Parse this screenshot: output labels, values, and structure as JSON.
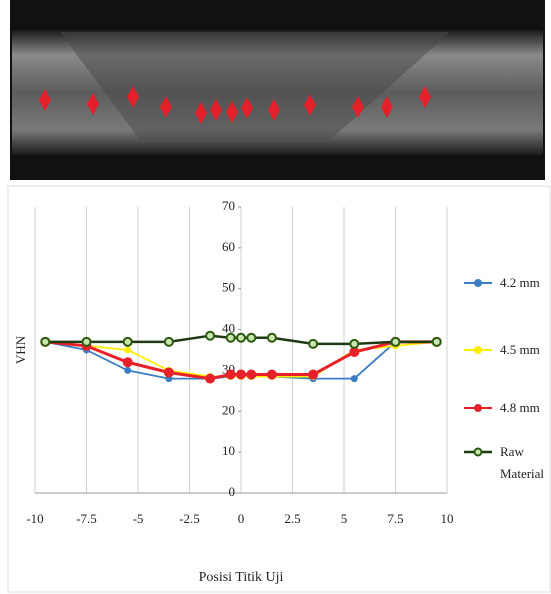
{
  "chart_data": {
    "type": "line",
    "xlabel": "Posisi Titik Uji",
    "ylabel": "VHN",
    "x": [
      -9.5,
      -7.5,
      -5.5,
      -3.5,
      -1.5,
      -0.5,
      0,
      0.5,
      1.5,
      3.5,
      5.5,
      7.5,
      9.5
    ],
    "series": [
      {
        "name": "4.2 mm",
        "color": "#3b7dc4",
        "values": [
          37,
          35,
          30,
          28,
          28,
          28.5,
          28.5,
          28.5,
          28.5,
          28,
          28,
          37,
          37
        ]
      },
      {
        "name": "4.5 mm",
        "color": "#ffee00",
        "values": [
          37,
          36,
          35,
          30,
          28.5,
          28.5,
          28.5,
          28.5,
          28.5,
          28.5,
          35,
          36,
          37
        ]
      },
      {
        "name": "4.8 mm",
        "color": "#e8202a",
        "values": [
          37,
          36,
          32,
          29.5,
          28,
          29,
          29,
          29,
          29,
          29,
          34.5,
          37,
          37
        ]
      },
      {
        "name": "Raw Material",
        "color": "#1f3a12",
        "values": [
          37,
          37,
          37,
          37,
          38.5,
          38,
          38,
          38,
          38,
          36.5,
          36.5,
          37,
          37
        ]
      }
    ],
    "xlim": [
      -10,
      10
    ],
    "xticks": [
      -10,
      -7.5,
      -5,
      -2.5,
      0,
      2.5,
      5,
      7.5,
      10
    ],
    "ylim": [
      0,
      70
    ],
    "yticks": [
      0,
      10,
      20,
      30,
      40,
      50,
      60,
      70
    ],
    "grid": true
  }
}
